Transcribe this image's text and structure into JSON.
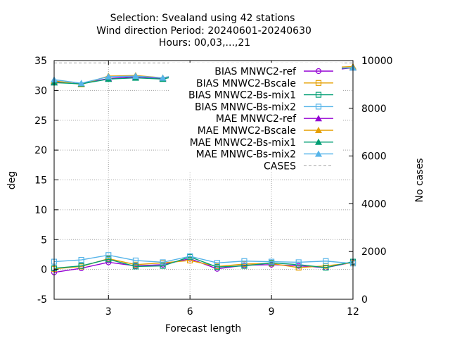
{
  "chart_data": {
    "type": "line",
    "title_lines": [
      "Selection: Svealand using    42 stations",
      "Wind direction   Period: 20240601-20240630",
      "Hours: 00,03,...,21"
    ],
    "xlabel": "Forecast length",
    "ylabel": "deg",
    "y2label": "No cases",
    "xlim": [
      1,
      12
    ],
    "ylim": [
      -5,
      35
    ],
    "y2lim": [
      0,
      10000
    ],
    "x_ticks": [
      3,
      6,
      9,
      12
    ],
    "y_ticks": [
      -5,
      0,
      5,
      10,
      15,
      20,
      25,
      30,
      35
    ],
    "y2_ticks": [
      0,
      2000,
      4000,
      6000,
      8000,
      10000
    ],
    "grid": true,
    "legend_position": "top-right",
    "x": [
      1,
      2,
      3,
      4,
      5,
      6,
      7,
      8,
      9,
      10,
      11,
      12
    ],
    "series": [
      {
        "name": "BIAS MNWC2-ref",
        "axis": "y",
        "color": "#9400d3",
        "marker": "open-circle",
        "values": [
          -0.5,
          0.2,
          1.2,
          0.6,
          0.8,
          1.8,
          0.1,
          0.7,
          0.8,
          0.6,
          0.3,
          1.2
        ]
      },
      {
        "name": "BIAS MNWC2-Bscale",
        "axis": "y",
        "color": "#e69f00",
        "marker": "open-square",
        "values": [
          0.1,
          0.5,
          1.8,
          0.8,
          1.1,
          1.5,
          0.5,
          0.9,
          1.0,
          0.3,
          0.6,
          1.1
        ]
      },
      {
        "name": "BIAS MNWC2-Bs-mix1",
        "axis": "y",
        "color": "#009e73",
        "marker": "open-square",
        "values": [
          0.2,
          0.6,
          1.7,
          0.5,
          0.6,
          2.1,
          0.4,
          0.6,
          1.1,
          0.8,
          0.3,
          1.3
        ]
      },
      {
        "name": "BIAS MNWC-Bs-mix2",
        "axis": "y",
        "color": "#56b4e9",
        "marker": "open-square",
        "values": [
          1.3,
          1.6,
          2.4,
          1.5,
          1.2,
          2.2,
          1.1,
          1.4,
          1.3,
          1.2,
          1.4,
          1.0
        ]
      },
      {
        "name": "MAE MNWC2-ref",
        "axis": "y",
        "color": "#9400d3",
        "marker": "filled-triangle",
        "values": [
          31.4,
          31.1,
          32.0,
          32.3,
          32.0,
          33.3,
          33.1,
          32.7,
          33.8,
          33.7,
          33.3,
          33.8
        ]
      },
      {
        "name": "MAE MNWC2-Bscale",
        "axis": "y",
        "color": "#e69f00",
        "marker": "filled-triangle",
        "values": [
          31.6,
          31.0,
          32.4,
          32.5,
          32.1,
          33.0,
          33.0,
          32.9,
          33.6,
          33.8,
          33.8,
          34.0
        ]
      },
      {
        "name": "MAE MNWC2-Bs-mix1",
        "axis": "y",
        "color": "#009e73",
        "marker": "filled-triangle",
        "values": [
          31.3,
          31.1,
          31.9,
          32.1,
          31.9,
          32.9,
          32.9,
          32.6,
          33.4,
          33.6,
          33.6,
          33.8
        ]
      },
      {
        "name": "MAE MNWC-Bs-mix2",
        "axis": "y",
        "color": "#56b4e9",
        "marker": "filled-triangle",
        "values": [
          31.8,
          31.2,
          32.3,
          32.4,
          32.1,
          33.0,
          33.2,
          33.0,
          33.5,
          34.0,
          33.7,
          33.8
        ]
      },
      {
        "name": "CASES",
        "axis": "y2",
        "color": "#a0a0a0",
        "marker": "none",
        "dashed": true,
        "values": [
          9900,
          9900,
          9900,
          9900,
          9900,
          9900,
          9900,
          9900,
          9900,
          9900,
          9900,
          9900
        ]
      }
    ]
  }
}
